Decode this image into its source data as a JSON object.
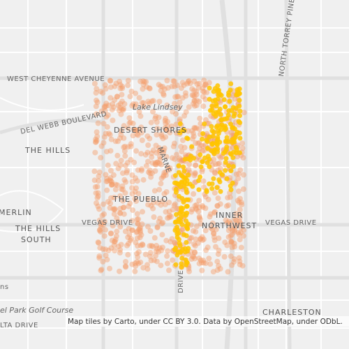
{
  "map": {
    "labels": [
      "WEST CHEYENNE AVENUE",
      "DEL WEBB BOULEVARD",
      "NORTH TORREY PINES",
      "Lake Lindsey",
      "DESERT SHORES",
      "THE HILLS",
      "MERLIN",
      "THE HILLS",
      "SOUTH",
      "THE PUEBLO",
      "VEGAS DRIVE",
      "VEGAS DRIVE",
      "INNER",
      "NORTHWEST",
      "MARNE",
      "el Park Golf Course",
      "LTA DRIVE",
      "CHARLESTON",
      "ns",
      "DRIVE"
    ],
    "attribution": "Map tiles by Carto, under CC BY 3.0. Data by OpenStreetMap, under ODbL."
  }
}
